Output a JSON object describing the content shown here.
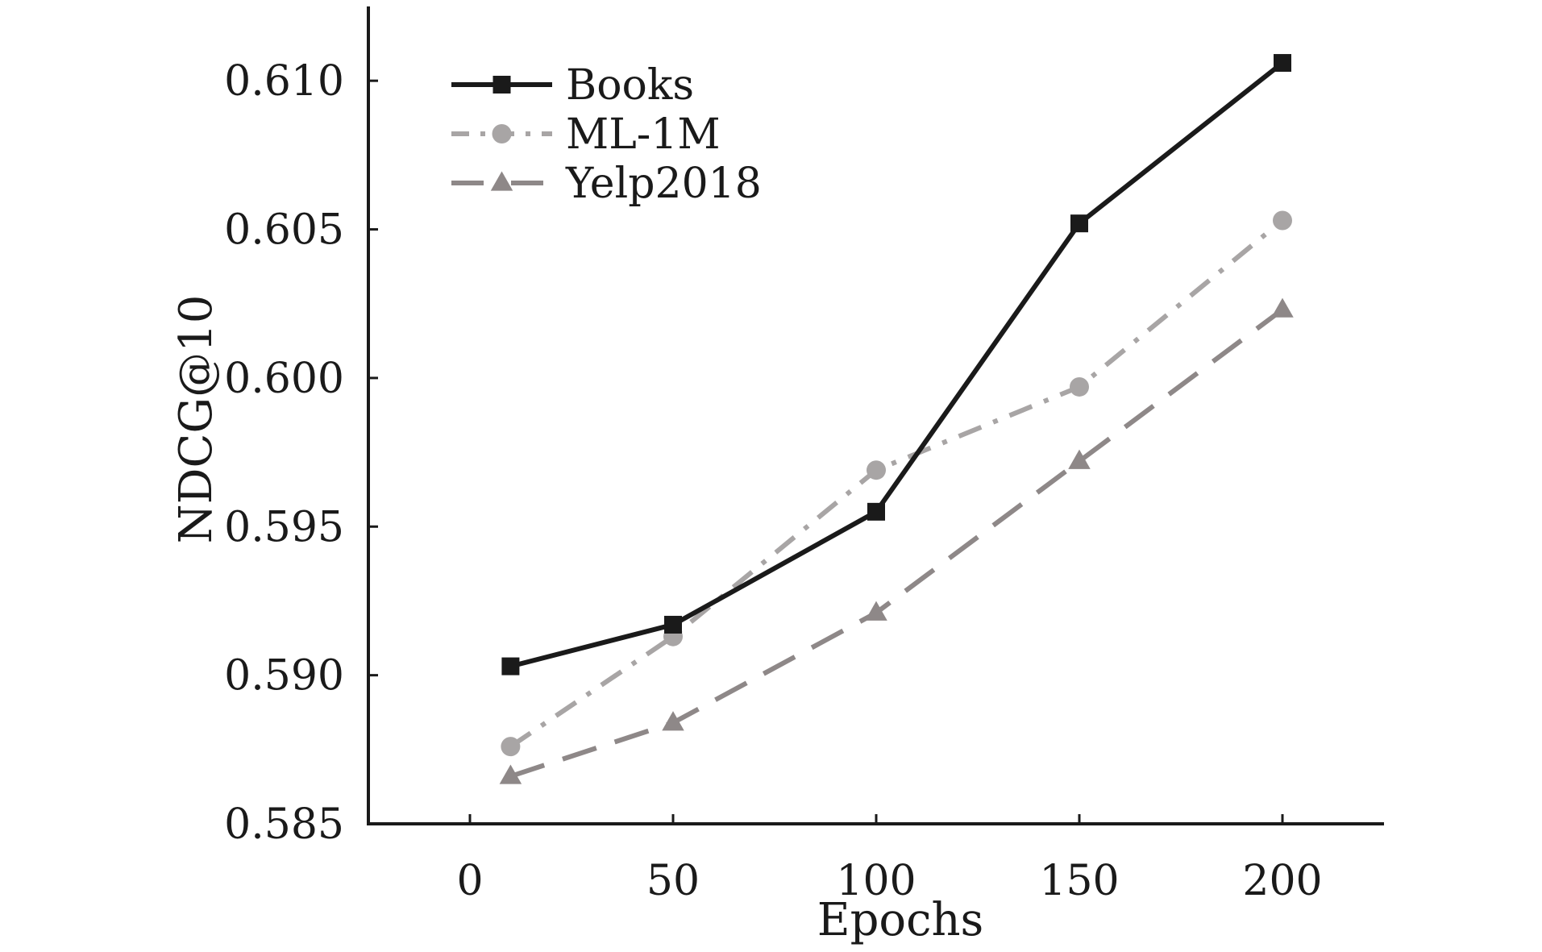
{
  "chart_data": {
    "type": "line",
    "title": "",
    "xlabel": "Epochs",
    "ylabel": "NDCG@10",
    "xlim": [
      -25,
      225
    ],
    "ylim": [
      0.585,
      0.6125
    ],
    "xticks": [
      0,
      50,
      100,
      150,
      200
    ],
    "xtick_labels": [
      "0",
      "50",
      "100",
      "150",
      "200"
    ],
    "yticks": [
      0.585,
      0.59,
      0.595,
      0.6,
      0.605,
      0.61
    ],
    "ytick_labels": [
      "0.585",
      "0.590",
      "0.595",
      "0.600",
      "0.605",
      "0.610"
    ],
    "grid": false,
    "legend_position": "top-left",
    "x": [
      10,
      50,
      100,
      150,
      200
    ],
    "series": [
      {
        "name": "Books",
        "values": [
          0.5903,
          0.5917,
          0.5955,
          0.6052,
          0.6106
        ],
        "color": "#1a1a1a",
        "line_style": "solid",
        "marker": "square"
      },
      {
        "name": "ML-1M",
        "values": [
          0.5876,
          0.5913,
          0.5969,
          0.5997,
          0.6053
        ],
        "color": "#a8a5a5",
        "line_style": "dash-dot",
        "marker": "circle"
      },
      {
        "name": "Yelp2018",
        "values": [
          0.5866,
          0.5884,
          0.5921,
          0.5972,
          0.6023
        ],
        "color": "#8e8888",
        "line_style": "dashed",
        "marker": "triangle"
      }
    ]
  }
}
